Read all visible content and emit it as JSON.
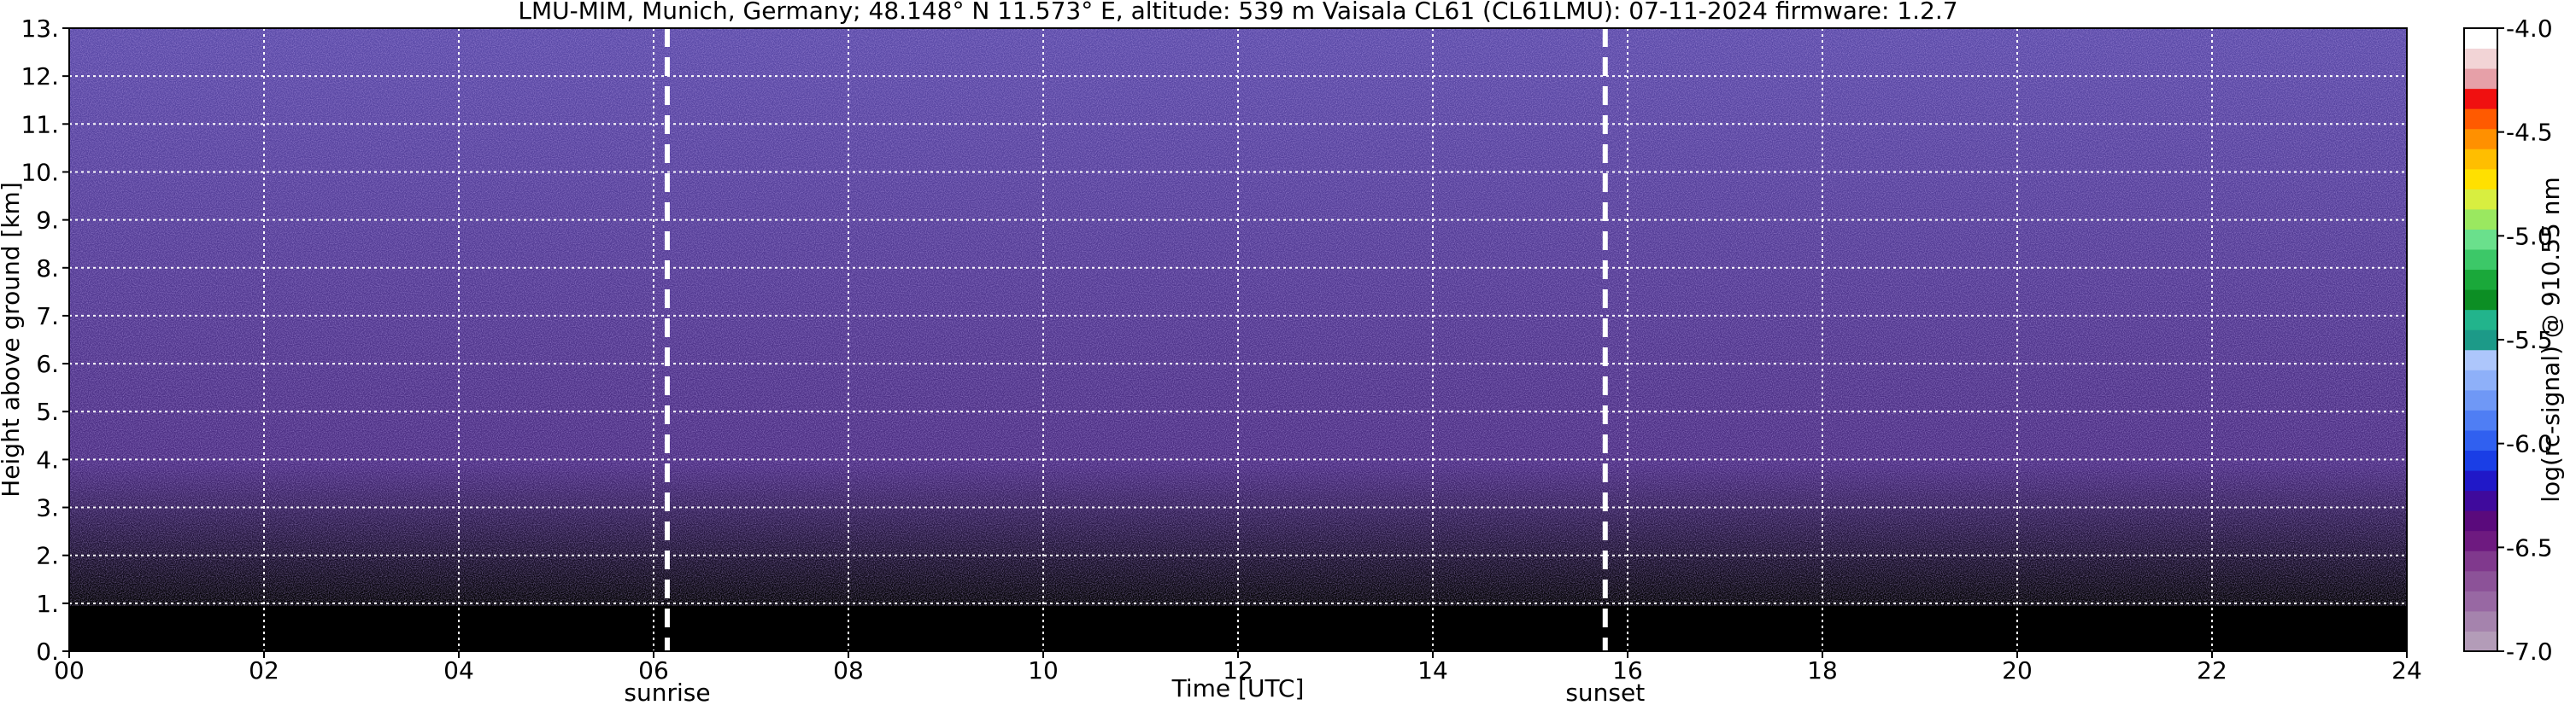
{
  "chart_data": {
    "type": "heatmap",
    "title": "LMU-MIM, Munich, Germany; 48.148° N 11.573° E, altitude: 539 m    Vaisala CL61 (CL61LMU): 07-11-2024    firmware: 1.2.7",
    "x_label": "Time [UTC]",
    "y_label": "Height above ground [km]",
    "xlim": [
      0,
      24
    ],
    "xticks": [
      {
        "value": 0,
        "label": "00"
      },
      {
        "value": 2,
        "label": "02"
      },
      {
        "value": 4,
        "label": "04"
      },
      {
        "value": 6,
        "label": "06"
      },
      {
        "value": 8,
        "label": "08"
      },
      {
        "value": 10,
        "label": "10"
      },
      {
        "value": 12,
        "label": "12"
      },
      {
        "value": 14,
        "label": "14"
      },
      {
        "value": 16,
        "label": "16"
      },
      {
        "value": 18,
        "label": "18"
      },
      {
        "value": 20,
        "label": "20"
      },
      {
        "value": 22,
        "label": "22"
      },
      {
        "value": 24,
        "label": "24"
      }
    ],
    "ylim": [
      0,
      13
    ],
    "yticks": [
      {
        "value": 0,
        "label": "0."
      },
      {
        "value": 1,
        "label": "1."
      },
      {
        "value": 2,
        "label": "2."
      },
      {
        "value": 3,
        "label": "3."
      },
      {
        "value": 4,
        "label": "4."
      },
      {
        "value": 5,
        "label": "5."
      },
      {
        "value": 6,
        "label": "6."
      },
      {
        "value": 7,
        "label": "7."
      },
      {
        "value": 8,
        "label": "8."
      },
      {
        "value": 9,
        "label": "9."
      },
      {
        "value": 10,
        "label": "10."
      },
      {
        "value": 11,
        "label": "11."
      },
      {
        "value": 12,
        "label": "12."
      },
      {
        "value": 13,
        "label": "13."
      }
    ],
    "grid": true,
    "events": [
      {
        "name": "sunrise",
        "x": 6.14
      },
      {
        "name": "sunset",
        "x": 15.77
      }
    ],
    "colorbar": {
      "label": "log(rc-signal) @ 910.55 nm",
      "lim": [
        -7,
        -4
      ],
      "ticks": [
        {
          "value": -7,
          "label": "-7.0"
        },
        -6.5,
        {
          "value": -6,
          "label": "-6.0"
        },
        -5.5,
        {
          "value": -5,
          "label": "-5.0"
        },
        -4.5,
        {
          "value": -4,
          "label": "-4.0"
        }
      ],
      "colors": [
        "#b39cb8",
        "#a583ad",
        "#9868a3",
        "#8c5298",
        "#80398d",
        "#6e1a80",
        "#5a0a7c",
        "#3f0a9c",
        "#2018c8",
        "#1a3ee6",
        "#3060f0",
        "#4f7ef4",
        "#6f98f6",
        "#8eb0f9",
        "#adc6fb",
        "#1c9a88",
        "#22b48c",
        "#0c8e24",
        "#1aa83a",
        "#3cc868",
        "#6ae08c",
        "#9ae860",
        "#d8ee40",
        "#ffe000",
        "#ffbe00",
        "#ff9000",
        "#ff5a00",
        "#f01010",
        "#e6a0a8",
        "#f2d4d6",
        "#ffffff"
      ]
    }
  }
}
